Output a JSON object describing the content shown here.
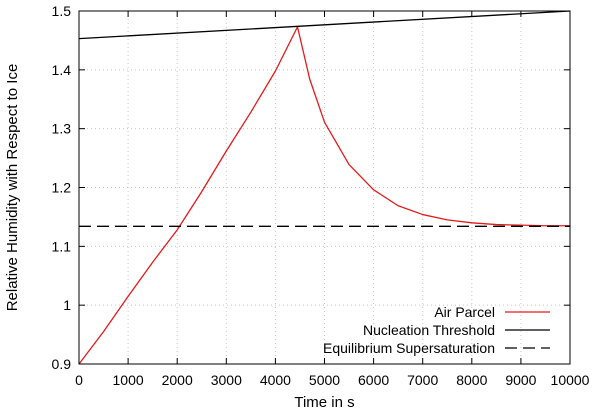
{
  "chart_data": {
    "type": "line",
    "xlabel": "Time in s",
    "ylabel": "Relative Humidity with Respect to Ice",
    "xlim": [
      0,
      10000
    ],
    "ylim": [
      0.9,
      1.5
    ],
    "xticks": [
      "0",
      "1000",
      "2000",
      "3000",
      "4000",
      "5000",
      "6000",
      "7000",
      "8000",
      "9000",
      "10000"
    ],
    "yticks": [
      "0.9",
      "1",
      "1.1",
      "1.2",
      "1.3",
      "1.4",
      "1.5"
    ],
    "grid": true,
    "legend_position": "bottom-right",
    "series": [
      {
        "name": "Air Parcel",
        "color": "#e41a1c",
        "style": "solid",
        "x": [
          0,
          500,
          1000,
          1500,
          2000,
          2500,
          3000,
          3500,
          4000,
          4450,
          4700,
          5000,
          5500,
          6000,
          6500,
          7000,
          7500,
          8000,
          8500,
          9000,
          9500,
          10000
        ],
        "y": [
          0.9,
          0.955,
          1.015,
          1.073,
          1.128,
          1.193,
          1.262,
          1.328,
          1.398,
          1.473,
          1.384,
          1.311,
          1.239,
          1.196,
          1.169,
          1.154,
          1.145,
          1.14,
          1.137,
          1.136,
          1.135,
          1.135
        ]
      },
      {
        "name": "Nucleation Threshold",
        "color": "#000000",
        "style": "solid",
        "x": [
          0,
          10000
        ],
        "y": [
          1.453,
          1.5
        ]
      },
      {
        "name": "Equilibrium Supersaturation",
        "color": "#000000",
        "style": "dashed",
        "x": [
          0,
          10000
        ],
        "y": [
          1.134,
          1.134
        ]
      }
    ]
  }
}
